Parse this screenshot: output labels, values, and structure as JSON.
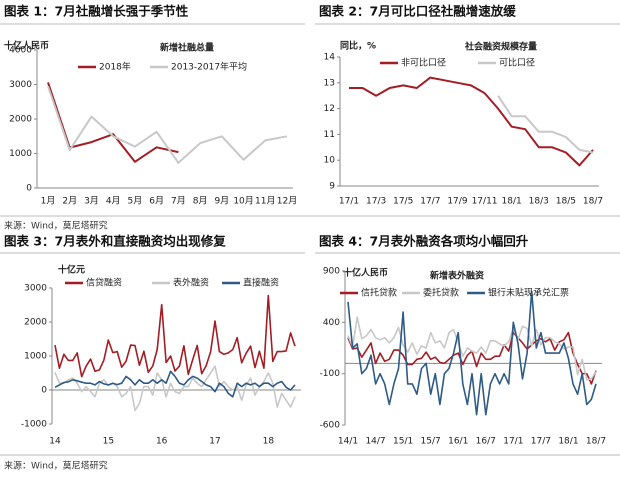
{
  "notes": [
    "来源：Wind，莫尼塔研究",
    "来源：Wind，莫尼塔研究"
  ],
  "chart_data": [
    {
      "type": "line",
      "title": "图表 1：7月社融增长强于季节性",
      "subtitle": "新增社融总量",
      "ylabel": "十亿人民币",
      "categories": [
        "1月",
        "2月",
        "3月",
        "4月",
        "5月",
        "6月",
        "7月",
        "8月",
        "9月",
        "10月",
        "11月",
        "12月"
      ],
      "ylim": [
        0,
        4000
      ],
      "yticks": [
        0,
        1000,
        2000,
        3000,
        4000
      ],
      "series": [
        {
          "name": "2018年",
          "color": "#a31d24",
          "values": [
            3060,
            1170,
            1330,
            1560,
            760,
            1180,
            1040,
            null,
            null,
            null,
            null,
            null
          ]
        },
        {
          "name": "2013-2017年平均",
          "color": "#c8c8c8",
          "values": [
            2950,
            1100,
            2070,
            1500,
            1200,
            1630,
            730,
            1300,
            1500,
            820,
            1380,
            1500
          ]
        }
      ]
    },
    {
      "type": "line",
      "title": "图表 2：7月可比口径社融增速放缓",
      "subtitle": "社会融资规模存量",
      "ylabel": "同比，%",
      "categories": [
        "17/1",
        null,
        "17/3",
        null,
        "17/5",
        null,
        "17/7",
        null,
        "17/9",
        null,
        "17/11",
        null,
        "18/1",
        null,
        "18/3",
        null,
        "18/5",
        null,
        "18/7"
      ],
      "ylim": [
        9,
        14
      ],
      "yticks": [
        9,
        10,
        11,
        12,
        13,
        14
      ],
      "series": [
        {
          "name": "非可比口径",
          "color": "#a31d24",
          "values": [
            12.8,
            12.8,
            12.5,
            12.8,
            12.9,
            12.8,
            13.2,
            13.1,
            13.0,
            12.9,
            12.6,
            12.0,
            11.3,
            11.2,
            10.5,
            10.5,
            10.3,
            9.8,
            10.4
          ]
        },
        {
          "name": "可比口径",
          "color": "#c8c8c8",
          "values": [
            null,
            null,
            null,
            null,
            null,
            null,
            null,
            null,
            null,
            null,
            null,
            12.5,
            11.7,
            11.7,
            11.1,
            11.1,
            10.9,
            10.4,
            10.3
          ]
        }
      ]
    },
    {
      "type": "line",
      "title": "图表 3：7月表外和直接融资均出现修复",
      "ylabel": "十亿元",
      "categories": [
        "14",
        null,
        null,
        null,
        null,
        null,
        null,
        null,
        null,
        null,
        null,
        null,
        "15",
        null,
        null,
        null,
        null,
        null,
        null,
        null,
        null,
        null,
        null,
        null,
        "16",
        null,
        null,
        null,
        null,
        null,
        null,
        null,
        null,
        null,
        null,
        null,
        "17",
        null,
        null,
        null,
        null,
        null,
        null,
        null,
        null,
        null,
        null,
        null,
        "18",
        null,
        null,
        null,
        null,
        null,
        null
      ],
      "ylim": [
        -1000,
        3000
      ],
      "yticks": [
        -1000,
        0,
        1000,
        2000,
        3000
      ],
      "series": [
        {
          "name": "信贷融资",
          "color": "#a31d24",
          "values": [
            1320,
            640,
            1050,
            870,
            870,
            1090,
            390,
            700,
            910,
            550,
            590,
            880,
            1470,
            1100,
            1130,
            670,
            850,
            1320,
            1310,
            730,
            1140,
            520,
            710,
            1190,
            2510,
            810,
            1000,
            560,
            700,
            1300,
            460,
            900,
            1310,
            480,
            710,
            1120,
            2030,
            1130,
            1050,
            1090,
            1190,
            1540,
            800,
            1080,
            1290,
            660,
            1140,
            640,
            2780,
            840,
            1130,
            1130,
            1150,
            1680,
            1290
          ]
        },
        {
          "name": "表外融资",
          "color": "#c8c8c8",
          "values": [
            520,
            200,
            200,
            300,
            350,
            200,
            -50,
            100,
            -50,
            -200,
            200,
            300,
            130,
            200,
            100,
            -200,
            -100,
            100,
            -600,
            -400,
            100,
            100,
            -150,
            500,
            300,
            -200,
            200,
            -50,
            -100,
            100,
            100,
            350,
            200,
            100,
            300,
            500,
            700,
            100,
            250,
            100,
            0,
            100,
            -300,
            150,
            350,
            -150,
            100,
            250,
            500,
            200,
            -500,
            -100,
            -300,
            -500,
            -200
          ]
        },
        {
          "name": "直接融资",
          "color": "#2e5b86",
          "values": [
            80,
            150,
            220,
            240,
            300,
            270,
            230,
            200,
            200,
            150,
            250,
            180,
            150,
            200,
            160,
            200,
            400,
            300,
            150,
            300,
            200,
            200,
            300,
            200,
            300,
            200,
            550,
            400,
            200,
            150,
            300,
            400,
            350,
            250,
            150,
            100,
            -50,
            200,
            100,
            -100,
            -200,
            200,
            100,
            200,
            150,
            200,
            100,
            200,
            200,
            100,
            200,
            250,
            80,
            0,
            150
          ]
        }
      ]
    },
    {
      "type": "line",
      "title": "图表 4：7月表外融资各项均小幅回升",
      "subtitle": "新增表外融资",
      "ylabel": "十亿人民币",
      "categories": [
        "14/1",
        null,
        null,
        null,
        null,
        null,
        "14/7",
        null,
        null,
        null,
        null,
        null,
        "15/1",
        null,
        null,
        null,
        null,
        null,
        "15/7",
        null,
        null,
        null,
        null,
        null,
        "16/1",
        null,
        null,
        null,
        null,
        null,
        "16/7",
        null,
        null,
        null,
        null,
        null,
        "17/1",
        null,
        null,
        null,
        null,
        null,
        "17/7",
        null,
        null,
        null,
        null,
        null,
        "18/1",
        null,
        null,
        null,
        null,
        null,
        "18/7"
      ],
      "ylim": [
        -600,
        900
      ],
      "yticks": [
        -600,
        -100,
        400,
        900
      ],
      "series": [
        {
          "name": "信托贷款",
          "color": "#a31d24",
          "values": [
            250,
            140,
            150,
            60,
            130,
            200,
            0,
            100,
            20,
            40,
            130,
            130,
            80,
            -10,
            -10,
            40,
            50,
            110,
            40,
            60,
            10,
            0,
            40,
            80,
            100,
            -10,
            80,
            120,
            -30,
            100,
            40,
            40,
            70,
            70,
            180,
            120,
            300,
            250,
            200,
            140,
            180,
            220,
            240,
            210,
            240,
            130,
            210,
            230,
            300,
            100,
            -10,
            -100,
            -100,
            -200,
            -70
          ]
        },
        {
          "name": "委托贷款",
          "color": "#c8c8c8",
          "values": [
            270,
            160,
            450,
            240,
            270,
            330,
            250,
            230,
            250,
            200,
            250,
            350,
            180,
            110,
            200,
            90,
            170,
            150,
            300,
            200,
            220,
            150,
            300,
            330,
            200,
            70,
            150,
            120,
            100,
            160,
            100,
            220,
            220,
            190,
            170,
            210,
            340,
            230,
            360,
            340,
            170,
            330,
            180,
            250,
            250,
            210,
            190,
            140,
            160,
            160,
            -110,
            40,
            -160,
            -150,
            -80
          ]
        },
        {
          "name": "银行未贴现承兑汇票",
          "color": "#2e5b86",
          "values": [
            600,
            150,
            190,
            -100,
            -50,
            80,
            -200,
            -100,
            -200,
            -400,
            -200,
            -50,
            500,
            -200,
            -200,
            -300,
            -50,
            0,
            -300,
            -100,
            -400,
            -100,
            -50,
            100,
            300,
            -200,
            -400,
            -100,
            -500,
            -100,
            -500,
            -200,
            -100,
            -200,
            -100,
            -200,
            400,
            200,
            -150,
            100,
            700,
            150,
            300,
            100,
            100,
            100,
            100,
            200,
            50,
            -200,
            -300,
            -100,
            -400,
            -350,
            -200
          ]
        }
      ]
    }
  ]
}
